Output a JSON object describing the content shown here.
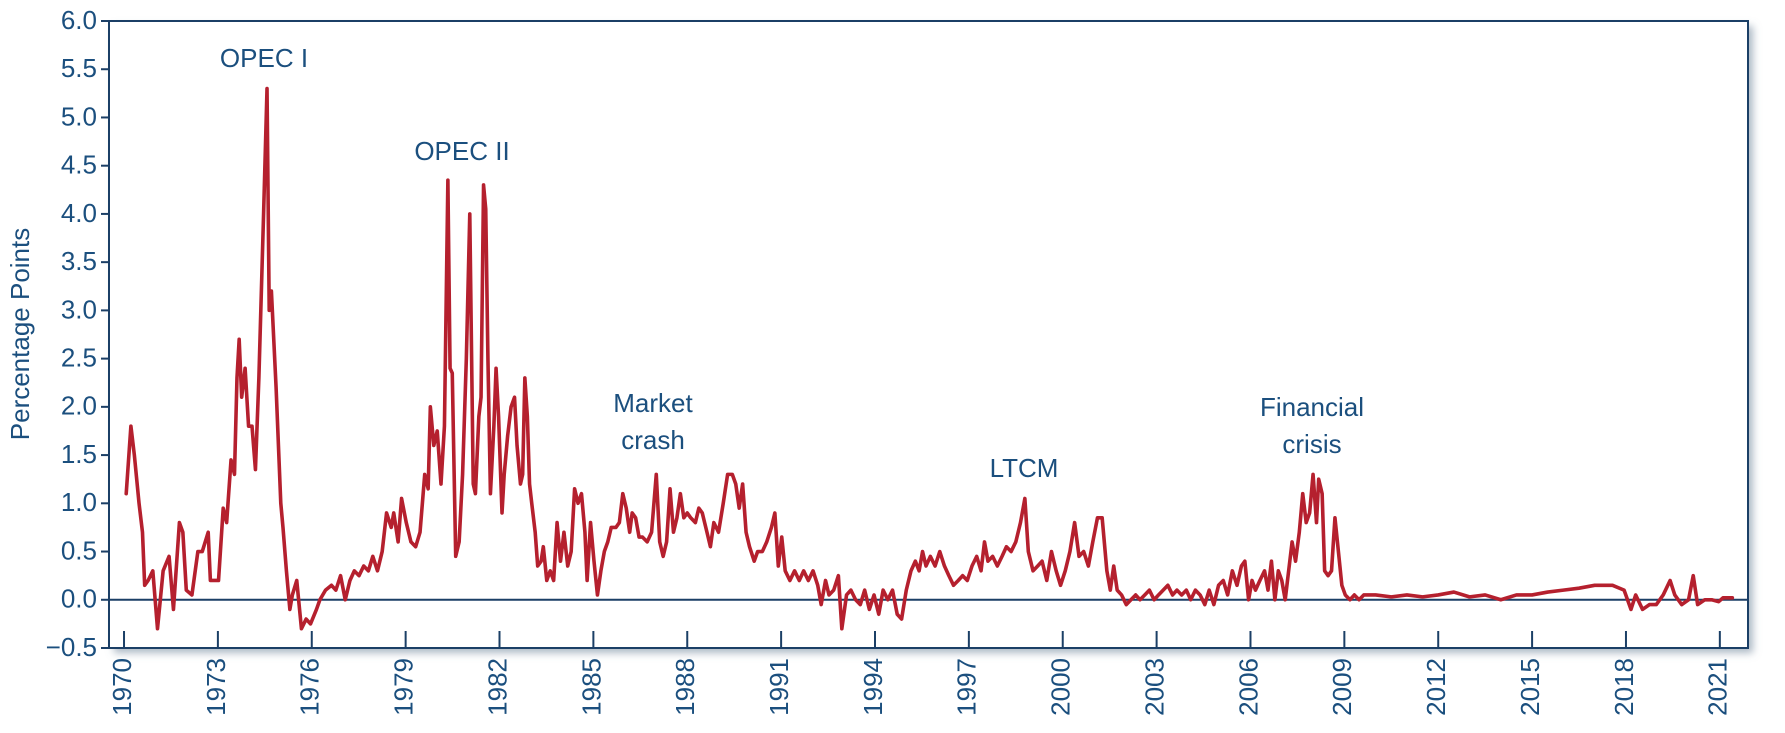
{
  "chart_data": {
    "type": "line",
    "ylabel": "Percentage Points",
    "color": "#b5202e",
    "xlim": [
      1969.52,
      2021.9
    ],
    "ylim": [
      -0.5,
      6.0
    ],
    "xticks": [
      1970,
      1973,
      1976,
      1979,
      1982,
      1985,
      1988,
      1991,
      1994,
      1997,
      2000,
      2003,
      2006,
      2009,
      2012,
      2015,
      2018,
      2021
    ],
    "yticks": [
      {
        "value": -0.5,
        "label": "−0.5"
      },
      {
        "value": 0,
        "label": "0.0"
      },
      0.5,
      {
        "value": 1,
        "label": "1.0"
      },
      1.5,
      {
        "value": 2,
        "label": "2.0"
      },
      2.5,
      {
        "value": 3,
        "label": "3.0"
      },
      3.5,
      {
        "value": 4,
        "label": "4.0"
      },
      4.5,
      {
        "value": 5,
        "label": "5.0"
      },
      5.5,
      {
        "value": 6,
        "label": "6.0"
      }
    ],
    "annotations": [
      [
        "OPEC I"
      ],
      [
        "OPEC II"
      ],
      [
        "Market",
        "crash"
      ],
      [
        "LTCM"
      ],
      [
        "Financial",
        "crisis"
      ]
    ],
    "x": [
      1970.07,
      1970.22,
      1970.33,
      1970.48,
      1970.59,
      1970.66,
      1970.77,
      1970.92,
      1971.07,
      1971.25,
      1971.44,
      1971.58,
      1971.77,
      1971.88,
      1971.99,
      1972.17,
      1972.36,
      1972.5,
      1972.69,
      1972.76,
      1973.02,
      1973.17,
      1973.28,
      1973.42,
      1973.53,
      1973.61,
      1973.68,
      1973.76,
      1973.87,
      1973.98,
      1974.09,
      1974.2,
      1974.31,
      1974.46,
      1974.57,
      1974.64,
      1974.71,
      1974.86,
      1975.01,
      1975.08,
      1975.19,
      1975.3,
      1975.38,
      1975.52,
      1975.67,
      1975.82,
      1975.96,
      1976.15,
      1976.26,
      1976.44,
      1976.63,
      1976.77,
      1976.92,
      1977.07,
      1977.22,
      1977.36,
      1977.51,
      1977.66,
      1977.81,
      1977.95,
      1978.1,
      1978.25,
      1978.39,
      1978.54,
      1978.62,
      1978.76,
      1978.87,
      1979.02,
      1979.17,
      1979.32,
      1979.46,
      1979.61,
      1979.72,
      1979.79,
      1979.9,
      1980.01,
      1980.13,
      1980.24,
      1980.35,
      1980.42,
      1980.49,
      1980.6,
      1980.71,
      1980.82,
      1980.94,
      1981.05,
      1981.16,
      1981.23,
      1981.34,
      1981.41,
      1981.49,
      1981.56,
      1981.63,
      1981.71,
      1981.82,
      1981.89,
      1981.97,
      1982.08,
      1982.15,
      1982.26,
      1982.37,
      1982.48,
      1982.56,
      1982.67,
      1982.74,
      1982.81,
      1982.89,
      1982.96,
      1983.03,
      1983.14,
      1983.22,
      1983.33,
      1983.4,
      1983.51,
      1983.62,
      1983.73,
      1983.84,
      1983.95,
      1984.06,
      1984.18,
      1984.29,
      1984.4,
      1984.51,
      1984.62,
      1984.73,
      1984.8,
      1984.91,
      1985.02,
      1985.13,
      1985.24,
      1985.35,
      1985.46,
      1985.57,
      1985.72,
      1985.83,
      1985.94,
      1986.05,
      1986.16,
      1986.24,
      1986.35,
      1986.46,
      1986.57,
      1986.72,
      1986.86,
      1987.01,
      1987.12,
      1987.23,
      1987.34,
      1987.45,
      1987.56,
      1987.67,
      1987.78,
      1987.89,
      1988.0,
      1988.11,
      1988.26,
      1988.37,
      1988.48,
      1988.63,
      1988.74,
      1988.85,
      1989.0,
      1989.15,
      1989.29,
      1989.44,
      1989.55,
      1989.66,
      1989.77,
      1989.88,
      1989.99,
      1990.14,
      1990.25,
      1990.4,
      1990.54,
      1990.69,
      1990.8,
      1990.91,
      1991.02,
      1991.13,
      1991.28,
      1991.43,
      1991.58,
      1991.72,
      1991.87,
      1992.02,
      1992.17,
      1992.28,
      1992.42,
      1992.53,
      1992.68,
      1992.83,
      1992.94,
      1993.09,
      1993.23,
      1993.38,
      1993.53,
      1993.67,
      1993.82,
      1993.97,
      1994.12,
      1994.26,
      1994.41,
      1994.56,
      1994.71,
      1994.85,
      1995.0,
      1995.15,
      1995.29,
      1995.41,
      1995.52,
      1995.63,
      1995.77,
      1995.92,
      1996.07,
      1996.22,
      1996.36,
      1996.51,
      1996.66,
      1996.8,
      1996.95,
      1997.1,
      1997.25,
      1997.39,
      1997.5,
      1997.61,
      1997.76,
      1997.91,
      1998.06,
      1998.2,
      1998.35,
      1998.5,
      1998.65,
      1998.79,
      1998.9,
      1999.05,
      1999.2,
      1999.34,
      1999.49,
      1999.64,
      1999.79,
      1999.93,
      2000.08,
      2000.23,
      2000.38,
      2000.52,
      2000.67,
      2000.82,
      2000.96,
      2001.11,
      2001.26,
      2001.41,
      2001.52,
      2001.63,
      2001.74,
      2001.88,
      2002.03,
      2002.18,
      2002.33,
      2002.47,
      2002.62,
      2002.77,
      2002.92,
      2003.06,
      2003.21,
      2003.36,
      2003.51,
      2003.65,
      2003.8,
      2003.95,
      2004.09,
      2004.24,
      2004.39,
      2004.54,
      2004.68,
      2004.83,
      2004.98,
      2005.13,
      2005.27,
      2005.42,
      2005.57,
      2005.71,
      2005.82,
      2005.94,
      2006.05,
      2006.16,
      2006.3,
      2006.45,
      2006.56,
      2006.67,
      2006.78,
      2006.89,
      2007.0,
      2007.11,
      2007.22,
      2007.33,
      2007.44,
      2007.56,
      2007.67,
      2007.78,
      2007.89,
      2008.0,
      2008.11,
      2008.18,
      2008.29,
      2008.37,
      2008.48,
      2008.59,
      2008.7,
      2008.81,
      2008.92,
      2009.03,
      2009.18,
      2009.32,
      2009.47,
      2009.62,
      2010.0,
      2010.5,
      2011.0,
      2011.5,
      2012.0,
      2012.5,
      2013.0,
      2013.5,
      2014.0,
      2014.5,
      2015.0,
      2015.5,
      2016.0,
      2016.5,
      2017.0,
      2017.3,
      2017.57,
      2017.94,
      2018.16,
      2018.31,
      2018.53,
      2018.75,
      2018.97,
      2019.19,
      2019.41,
      2019.56,
      2019.78,
      2020.0,
      2020.15,
      2020.29,
      2020.52,
      2020.74,
      2020.96,
      2021.1,
      2021.4
    ],
    "values": [
      1.1,
      1.8,
      1.5,
      1.0,
      0.7,
      0.15,
      0.2,
      0.3,
      -0.3,
      0.3,
      0.45,
      -0.1,
      0.8,
      0.7,
      0.1,
      0.05,
      0.5,
      0.5,
      0.7,
      0.2,
      0.2,
      0.95,
      0.8,
      1.45,
      1.3,
      2.3,
      2.7,
      2.1,
      2.4,
      1.8,
      1.8,
      1.35,
      2.3,
      4.0,
      5.3,
      3.0,
      3.2,
      2.2,
      1.0,
      0.75,
      0.3,
      -0.1,
      0.05,
      0.2,
      -0.3,
      -0.2,
      -0.25,
      -0.1,
      0.0,
      0.1,
      0.15,
      0.1,
      0.25,
      0.0,
      0.2,
      0.3,
      0.25,
      0.35,
      0.3,
      0.45,
      0.3,
      0.5,
      0.9,
      0.75,
      0.9,
      0.6,
      1.05,
      0.8,
      0.6,
      0.55,
      0.7,
      1.3,
      1.15,
      2.0,
      1.6,
      1.75,
      1.2,
      1.8,
      4.35,
      2.4,
      2.35,
      0.45,
      0.6,
      1.3,
      2.5,
      4.0,
      1.2,
      1.1,
      1.9,
      2.1,
      4.3,
      4.05,
      2.5,
      1.1,
      1.8,
      2.4,
      1.9,
      0.9,
      1.3,
      1.7,
      2.0,
      2.1,
      1.6,
      1.2,
      1.3,
      2.3,
      1.9,
      1.2,
      1.0,
      0.7,
      0.35,
      0.4,
      0.55,
      0.2,
      0.3,
      0.2,
      0.8,
      0.4,
      0.7,
      0.35,
      0.5,
      1.15,
      1.0,
      1.1,
      0.7,
      0.2,
      0.8,
      0.4,
      0.05,
      0.3,
      0.5,
      0.6,
      0.75,
      0.75,
      0.8,
      1.1,
      0.95,
      0.7,
      0.9,
      0.85,
      0.65,
      0.65,
      0.6,
      0.7,
      1.3,
      0.6,
      0.45,
      0.6,
      1.15,
      0.7,
      0.85,
      1.1,
      0.85,
      0.9,
      0.85,
      0.8,
      0.95,
      0.9,
      0.7,
      0.55,
      0.8,
      0.7,
      1.0,
      1.3,
      1.3,
      1.2,
      0.95,
      1.2,
      0.7,
      0.55,
      0.4,
      0.5,
      0.5,
      0.6,
      0.75,
      0.9,
      0.35,
      0.65,
      0.3,
      0.2,
      0.3,
      0.2,
      0.3,
      0.2,
      0.3,
      0.15,
      -0.05,
      0.2,
      0.05,
      0.1,
      0.25,
      -0.3,
      0.05,
      0.1,
      0.0,
      -0.05,
      0.1,
      -0.1,
      0.05,
      -0.15,
      0.1,
      0.0,
      0.1,
      -0.15,
      -0.2,
      0.1,
      0.3,
      0.4,
      0.3,
      0.5,
      0.35,
      0.45,
      0.35,
      0.5,
      0.35,
      0.25,
      0.15,
      0.2,
      0.25,
      0.2,
      0.35,
      0.45,
      0.3,
      0.6,
      0.4,
      0.45,
      0.35,
      0.45,
      0.55,
      0.5,
      0.6,
      0.8,
      1.05,
      0.5,
      0.3,
      0.35,
      0.4,
      0.2,
      0.5,
      0.3,
      0.15,
      0.3,
      0.5,
      0.8,
      0.45,
      0.5,
      0.35,
      0.6,
      0.85,
      0.85,
      0.3,
      0.1,
      0.35,
      0.1,
      0.05,
      -0.05,
      0.0,
      0.05,
      0.0,
      0.05,
      0.1,
      0.0,
      0.05,
      0.1,
      0.15,
      0.05,
      0.1,
      0.05,
      0.1,
      0.0,
      0.1,
      0.05,
      -0.05,
      0.1,
      -0.05,
      0.15,
      0.2,
      0.05,
      0.3,
      0.15,
      0.35,
      0.4,
      0.0,
      0.2,
      0.1,
      0.2,
      0.3,
      0.1,
      0.4,
      0.0,
      0.3,
      0.2,
      0.0,
      0.3,
      0.6,
      0.4,
      0.7,
      1.1,
      0.8,
      0.9,
      1.3,
      0.8,
      1.25,
      1.1,
      0.3,
      0.25,
      0.3,
      0.85,
      0.5,
      0.15,
      0.05,
      0.0,
      0.05,
      0.0,
      0.05,
      0.05,
      0.03,
      0.05,
      0.03,
      0.05,
      0.08,
      0.03,
      0.05,
      0.0,
      0.05,
      0.05,
      0.08,
      0.1,
      0.12,
      0.15,
      0.15,
      0.15,
      0.1,
      -0.1,
      0.05,
      -0.1,
      -0.05,
      -0.05,
      0.05,
      0.2,
      0.05,
      -0.05,
      0.0,
      0.25,
      -0.05,
      0.0,
      0.0,
      -0.02,
      0.02,
      0.02
    ]
  }
}
